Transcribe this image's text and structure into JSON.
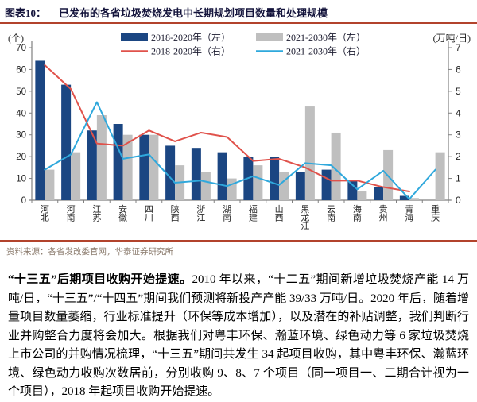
{
  "header": {
    "tag": "图表10：",
    "title": "已发布的各省垃圾焚烧发电中长期规划项目数量和处理规模"
  },
  "chart_data": {
    "type": "bar",
    "combo": "bar+line dual-axis",
    "categories": [
      "河北",
      "河南",
      "江苏",
      "安徽",
      "四川",
      "陕西",
      "浙江",
      "湖南",
      "福建",
      "山西",
      "黑龙江",
      "云南",
      "海南",
      "贵州",
      "青海",
      "重庆"
    ],
    "series": [
      {
        "name": "2018-2020年（左）",
        "kind": "bar",
        "axis": "left",
        "color": "#1B4682",
        "values": [
          64,
          53,
          32,
          35,
          30,
          25,
          24,
          22,
          20,
          20,
          13,
          14,
          9,
          6,
          2,
          0
        ]
      },
      {
        "name": "2021-2030年（左）",
        "kind": "bar",
        "axis": "left",
        "color": "#BFBFBF",
        "values": [
          14,
          22,
          39,
          30,
          30,
          16,
          13,
          10,
          16,
          13,
          43,
          31,
          4,
          23,
          1,
          22
        ]
      },
      {
        "name": "2018-2020年（右）",
        "kind": "line",
        "axis": "right",
        "color": "#E0524B",
        "values": [
          6.2,
          5.1,
          2.6,
          2.5,
          3.2,
          2.7,
          3.1,
          2.9,
          1.8,
          1.9,
          1.5,
          0.9,
          0.9,
          0.6,
          0.4,
          null
        ]
      },
      {
        "name": "2021-2030年（右）",
        "kind": "line",
        "axis": "right",
        "color": "#2FA8DC",
        "values": [
          1.4,
          2.1,
          4.5,
          1.9,
          2.1,
          0.8,
          0.9,
          0.65,
          1.1,
          0.7,
          1.7,
          1.6,
          0.5,
          1.35,
          0.05,
          1.4
        ]
      }
    ],
    "left_axis": {
      "label": "(个)",
      "min": 0,
      "max": 70,
      "step": 10
    },
    "right_axis": {
      "label": "(万吨/日)",
      "min": 0,
      "max": 7,
      "step": 1
    },
    "grid": false,
    "legend_position": "top",
    "title": "已发布的各省垃圾焚烧发电中长期规划项目数量和处理规模"
  },
  "source": {
    "text": "资料来源：各省发改委官网，华泰证券研究所"
  },
  "body": {
    "lead": "“十三五”后期项目收购开始提速。",
    "text": "2010 年以来，“十二五”期间新增垃圾焚烧产能 14 万吨/日，“十三五”/“十四五”期间我们预测将新投产产能 39/33 万吨/日。2020 年后，随着增量项目数量萎缩，行业标准提升（环保等成本增加），以及潜在的补贴调整，我们判断行业并购整合力度将会加大。根据我们对粤丰环保、瀚蓝环境、绿色动力等 6 家垃圾焚烧上市公司的并购情况梳理，“十三五”期间共发生 34 起项目收购，其中粤丰环保、瀚蓝环境、绿色动力收购次数居前，分别收购 9、8、7 个项目（同一项目一、二期合计视为一个项目），2018 年起项目收购开始提速。"
  },
  "colors": {
    "rule": "#B2432C",
    "title_text": "#14143C",
    "source_text": "#8A7A6C",
    "tick_text": "#262626",
    "axis_line": "#808080"
  }
}
